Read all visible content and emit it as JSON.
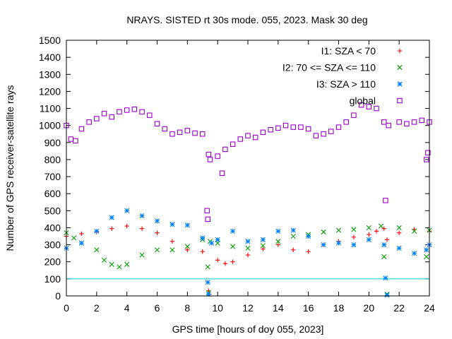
{
  "chart_data": {
    "type": "scatter",
    "title": "NRAYS. SISTED rt 30s mode. 055, 2023. Mask 30 deg",
    "xlabel": "GPS time [hours of doy 055, 2023]",
    "ylabel": "Number of GPS receiver-satellite rays",
    "xlim": [
      0,
      24
    ],
    "ylim": [
      0,
      1500
    ],
    "xticks": [
      "0",
      "2",
      "4",
      "6",
      "8",
      "10",
      "12",
      "14",
      "16",
      "18",
      "20",
      "22",
      "24"
    ],
    "yticks": [
      "0",
      "100",
      "200",
      "300",
      "400",
      "500",
      "600",
      "700",
      "800",
      "900",
      "1000",
      "1100",
      "1200",
      "1300",
      "1400",
      "1500"
    ],
    "legend_position": "top-right",
    "reference_line": {
      "y": 100,
      "color": "#00cccc"
    },
    "series": [
      {
        "name": "I1: SZA < 70",
        "color": "#ff0000",
        "marker": "plus",
        "points": [
          [
            0,
            350
          ],
          [
            1,
            365
          ],
          [
            2,
            375
          ],
          [
            3,
            395
          ],
          [
            4,
            410
          ],
          [
            5,
            395
          ],
          [
            6,
            370
          ],
          [
            7,
            320
          ],
          [
            8,
            270
          ],
          [
            9,
            260
          ],
          [
            9.4,
            30
          ],
          [
            9.45,
            10
          ],
          [
            10,
            210
          ],
          [
            10.5,
            190
          ],
          [
            11,
            200
          ],
          [
            12,
            240
          ],
          [
            13,
            275
          ],
          [
            14,
            300
          ],
          [
            15,
            270
          ],
          [
            16,
            260
          ],
          [
            17,
            300
          ],
          [
            18,
            320
          ],
          [
            19,
            345
          ],
          [
            20,
            360
          ],
          [
            20.5,
            380
          ],
          [
            21,
            395
          ],
          [
            21.2,
            330
          ],
          [
            22,
            370
          ],
          [
            23,
            390
          ],
          [
            24,
            380
          ]
        ]
      },
      {
        "name": "I2: 70 <= SZA <= 110",
        "color": "#00a000",
        "marker": "cross",
        "points": [
          [
            0,
            370
          ],
          [
            0.5,
            340
          ],
          [
            1,
            310
          ],
          [
            2,
            270
          ],
          [
            2.5,
            210
          ],
          [
            3,
            185
          ],
          [
            3.5,
            170
          ],
          [
            4,
            185
          ],
          [
            5,
            240
          ],
          [
            6,
            270
          ],
          [
            7,
            270
          ],
          [
            8,
            290
          ],
          [
            9,
            330
          ],
          [
            9.35,
            170
          ],
          [
            9.4,
            20
          ],
          [
            9.5,
            320
          ],
          [
            10,
            310
          ],
          [
            11,
            290
          ],
          [
            12,
            280
          ],
          [
            13,
            295
          ],
          [
            14,
            320
          ],
          [
            15,
            350
          ],
          [
            16,
            360
          ],
          [
            17,
            375
          ],
          [
            18,
            385
          ],
          [
            19,
            390
          ],
          [
            20,
            400
          ],
          [
            20.8,
            410
          ],
          [
            21,
            230
          ],
          [
            21.2,
            10
          ],
          [
            22,
            400
          ],
          [
            23,
            380
          ],
          [
            23.8,
            230
          ],
          [
            24,
            385
          ]
        ]
      },
      {
        "name": "I3: SZA > 110",
        "color": "#0080ff",
        "marker": "star",
        "points": [
          [
            0,
            280
          ],
          [
            1,
            310
          ],
          [
            2,
            380
          ],
          [
            3,
            460
          ],
          [
            4,
            500
          ],
          [
            5,
            470
          ],
          [
            6,
            440
          ],
          [
            7,
            420
          ],
          [
            8,
            415
          ],
          [
            9,
            340
          ],
          [
            9.35,
            80
          ],
          [
            9.4,
            10
          ],
          [
            9.6,
            310
          ],
          [
            10,
            330
          ],
          [
            11,
            380
          ],
          [
            12,
            320
          ],
          [
            13,
            330
          ],
          [
            14,
            380
          ],
          [
            15,
            385
          ],
          [
            16,
            350
          ],
          [
            17,
            300
          ],
          [
            18,
            310
          ],
          [
            19,
            300
          ],
          [
            20,
            330
          ],
          [
            21,
            300
          ],
          [
            21.1,
            105
          ],
          [
            21.2,
            5
          ],
          [
            22,
            280
          ],
          [
            23,
            250
          ],
          [
            23.8,
            270
          ],
          [
            24,
            300
          ]
        ]
      },
      {
        "name": "global",
        "color": "#9900cc",
        "marker": "square",
        "points": [
          [
            0,
            1000
          ],
          [
            0.3,
            920
          ],
          [
            0.6,
            910
          ],
          [
            1,
            980
          ],
          [
            1.5,
            1020
          ],
          [
            2,
            1040
          ],
          [
            2.5,
            1070
          ],
          [
            3,
            1050
          ],
          [
            3.5,
            1080
          ],
          [
            4,
            1090
          ],
          [
            4.5,
            1095
          ],
          [
            5,
            1080
          ],
          [
            5.5,
            1060
          ],
          [
            6,
            1010
          ],
          [
            6.5,
            980
          ],
          [
            7,
            950
          ],
          [
            7.5,
            960
          ],
          [
            8,
            970
          ],
          [
            8.5,
            955
          ],
          [
            9,
            950
          ],
          [
            9.3,
            500
          ],
          [
            9.35,
            450
          ],
          [
            9.4,
            830
          ],
          [
            9.5,
            800
          ],
          [
            10,
            820
          ],
          [
            10.3,
            720
          ],
          [
            10.5,
            860
          ],
          [
            11,
            890
          ],
          [
            11.5,
            920
          ],
          [
            12,
            940
          ],
          [
            12.5,
            930
          ],
          [
            13,
            960
          ],
          [
            13.5,
            975
          ],
          [
            14,
            985
          ],
          [
            14.5,
            1000
          ],
          [
            15,
            990
          ],
          [
            15.5,
            990
          ],
          [
            16,
            980
          ],
          [
            16.5,
            940
          ],
          [
            17,
            950
          ],
          [
            17.5,
            965
          ],
          [
            18,
            990
          ],
          [
            18.5,
            1020
          ],
          [
            19,
            1060
          ],
          [
            19.5,
            1120
          ],
          [
            20,
            1110
          ],
          [
            20.5,
            1100
          ],
          [
            21,
            1020
          ],
          [
            21.1,
            560
          ],
          [
            21.3,
            1000
          ],
          [
            22,
            1020
          ],
          [
            22.5,
            1010
          ],
          [
            23,
            1020
          ],
          [
            23.5,
            1030
          ],
          [
            23.8,
            800
          ],
          [
            23.9,
            840
          ],
          [
            24,
            1020
          ]
        ]
      }
    ]
  }
}
